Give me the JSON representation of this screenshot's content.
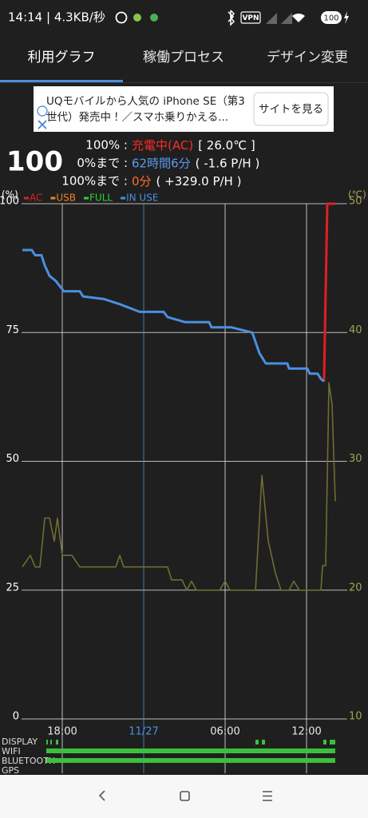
{
  "status_bar": {
    "time": "14:14 | 4.3KB/秒",
    "vpn": "VPN",
    "battery": "100"
  },
  "tabs": [
    "利用グラフ",
    "稼働プロセス",
    "デザイン変更"
  ],
  "ad": {
    "line1": "UQモバイルから人気の iPhone SE（第3",
    "line2": "世代）発売中！／スマホ乗りかえる...",
    "button": "サイトを見る"
  },
  "battery_level": "100",
  "status_lines": [
    {
      "label": "100% :",
      "value": "充電中(AC)",
      "value_color": "#ff2a2a",
      "detail": "[ 26.0℃ ]"
    },
    {
      "label": "0%まで :",
      "value": "62時間6分",
      "value_color": "#5a9af0",
      "detail": "( -1.6 P/H )"
    },
    {
      "label": "100%まで :",
      "value": "0分",
      "value_color": "#ff6a2a",
      "detail": "( +329.0 P/H )"
    }
  ],
  "chart_data": {
    "type": "line",
    "y_label": "(%)",
    "y2_label": "(℃)",
    "xlim": [
      15,
      39
    ],
    "xticks": [
      {
        "value": 18,
        "label": "18:00"
      },
      {
        "value": 24,
        "label": "11/27"
      },
      {
        "value": 30,
        "label": "06:00"
      },
      {
        "value": 36,
        "label": "12:00"
      }
    ],
    "xtick_colors": [
      "#e8e8e8",
      "#4a8fe0",
      "#e8e8e8",
      "#e8e8e8"
    ],
    "ylim": [
      0,
      100
    ],
    "yticks": [
      0,
      25,
      50,
      75,
      100
    ],
    "y2lim": [
      10,
      50
    ],
    "y2ticks": [
      10,
      20,
      30,
      40,
      50
    ],
    "y2_color": "#a3a35a",
    "grid": true,
    "series": [
      {
        "name": "AC",
        "color": "#e02020",
        "x": [
          37.29,
          37.53,
          38.12
        ],
        "values": [
          65.5,
          100,
          100
        ]
      },
      {
        "name": "USB",
        "color": "#f08020",
        "x": [],
        "values": []
      },
      {
        "name": "FULL",
        "color": "#30d030",
        "x": [],
        "values": []
      },
      {
        "name": "IN USE",
        "color": "#4a8fe0",
        "x": [
          15.06,
          15.76,
          16.0,
          16.47,
          16.71,
          17.06,
          17.53,
          17.82,
          18.12,
          19.29,
          19.53,
          21.06,
          22.24,
          23.71,
          25.47,
          25.76,
          27.06,
          28.82,
          29.0,
          30.47,
          32.0,
          32.53,
          33.0,
          34.59,
          34.71,
          36.06,
          36.24,
          36.82,
          37.06,
          37.29
        ],
        "values": [
          91,
          91,
          90,
          90,
          88,
          86,
          85,
          84,
          83,
          83,
          82,
          81.5,
          80.5,
          79,
          79,
          78,
          77,
          77,
          76,
          76,
          75,
          71,
          69,
          69,
          68,
          68,
          67,
          67,
          66,
          65.5
        ]
      },
      {
        "color": "#6e6e30",
        "axis": "y2",
        "x": [
          15.06,
          15.65,
          16.0,
          16.35,
          16.71,
          17.06,
          17.41,
          17.65,
          18.0,
          18.71,
          19.29,
          21.94,
          22.24,
          22.53,
          25.76,
          26.06,
          26.82,
          27.18,
          27.53,
          27.88,
          29.59,
          30.0,
          30.35,
          32.24,
          32.71,
          33.18,
          33.71,
          34.12,
          34.71,
          35.06,
          35.47,
          37.06,
          37.18,
          37.41,
          37.65,
          37.88,
          38.12
        ],
        "values": [
          21.8,
          22.7,
          21.8,
          21.8,
          25.6,
          25.6,
          23.8,
          25.6,
          22.7,
          22.7,
          21.8,
          21.8,
          22.7,
          21.8,
          21.8,
          20.8,
          20.8,
          20.0,
          20.7,
          20.0,
          20.0,
          20.7,
          20.0,
          20.0,
          28.9,
          23.8,
          21.3,
          20.0,
          20.0,
          20.7,
          20.0,
          20.0,
          21.9,
          21.9,
          36.1,
          34.4,
          26.9
        ]
      }
    ]
  },
  "activity_labels": [
    "DISPLAY",
    "WIFI",
    "BLUETOOTH",
    "GPS"
  ]
}
